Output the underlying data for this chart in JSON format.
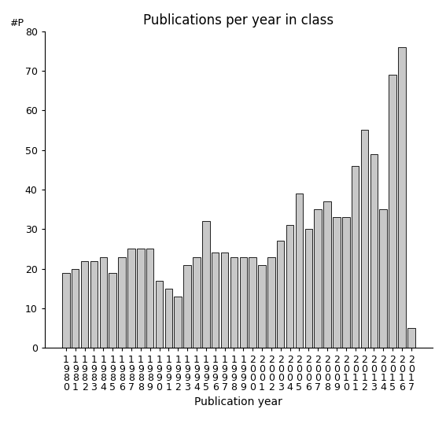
{
  "title": "Publications per year in class",
  "xlabel": "Publication year",
  "ylabel": "#P",
  "years": [
    1980,
    1981,
    1982,
    1983,
    1984,
    1985,
    1986,
    1987,
    1988,
    1989,
    1990,
    1991,
    1992,
    1993,
    1994,
    1995,
    1996,
    1997,
    1998,
    1999,
    2000,
    2001,
    2002,
    2003,
    2004,
    2005,
    2006,
    2007,
    2008,
    2009,
    2010,
    2011,
    2012,
    2013,
    2014,
    2015,
    2016,
    2017
  ],
  "values": [
    19,
    20,
    22,
    22,
    23,
    19,
    23,
    25,
    25,
    25,
    17,
    15,
    13,
    21,
    23,
    32,
    24,
    24,
    23,
    23,
    23,
    21,
    23,
    27,
    31,
    39,
    30,
    35,
    37,
    33,
    33,
    46,
    55,
    49,
    35,
    69,
    76,
    5
  ],
  "bar_color": "#c8c8c8",
  "bar_edgecolor": "#000000",
  "ylim": [
    0,
    80
  ],
  "yticks": [
    0,
    10,
    20,
    30,
    40,
    50,
    60,
    70,
    80
  ],
  "background_color": "#ffffff",
  "title_fontsize": 12,
  "xlabel_fontsize": 10,
  "tick_fontsize": 9
}
